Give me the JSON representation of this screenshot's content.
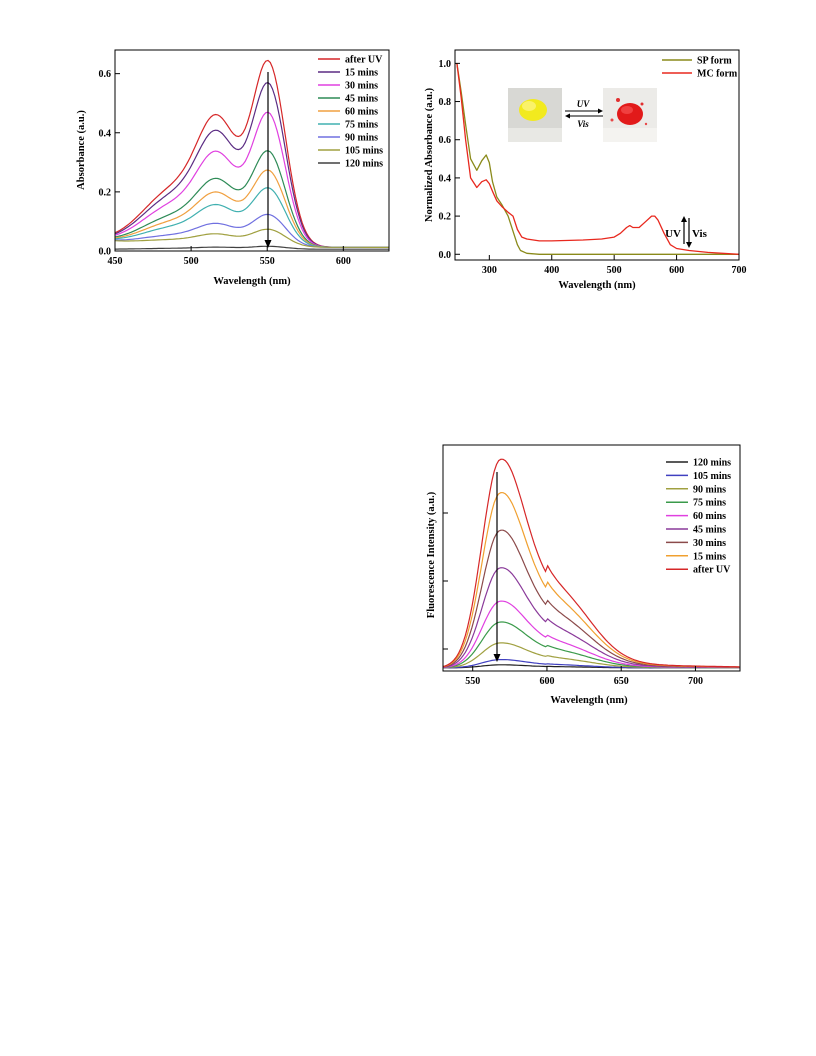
{
  "chart_data": [
    {
      "type": "line",
      "title": "",
      "xlabel": "Wavelength (nm)",
      "ylabel": "Absorbance (a.u.)",
      "xlim": [
        450,
        630
      ],
      "ylim": [
        0,
        0.68
      ],
      "xticks": [
        "450",
        "500",
        "550",
        "600"
      ],
      "yticks": [
        "0.0",
        "0.2",
        "0.4",
        "0.6"
      ],
      "legend_position": "top-right",
      "annotation": "arrow pointing down at 550 nm",
      "series": [
        {
          "name": "after UV",
          "color": "#d62728",
          "peak": 0.63
        },
        {
          "name": "15 mins",
          "color": "#5b2c83",
          "peak": 0.555
        },
        {
          "name": "30 mins",
          "color": "#e040e0",
          "peak": 0.455
        },
        {
          "name": "45 mins",
          "color": "#2e8b57",
          "peak": 0.325
        },
        {
          "name": "60 mins",
          "color": "#f0a040",
          "peak": 0.26
        },
        {
          "name": "75 mins",
          "color": "#40b0b0",
          "peak": 0.2
        },
        {
          "name": "90 mins",
          "color": "#7070e0",
          "peak": 0.11
        },
        {
          "name": "105 mins",
          "color": "#a0a040",
          "peak": 0.06
        },
        {
          "name": "120 mins",
          "color": "#404040",
          "peak": 0.01
        }
      ]
    },
    {
      "type": "line",
      "title": "",
      "xlabel": "Wavelength (nm)",
      "ylabel": "Normalized Absorbance (a.u.)",
      "xlim": [
        245,
        700
      ],
      "ylim": [
        -0.03,
        1.07
      ],
      "xticks": [
        "300",
        "400",
        "500",
        "600",
        "700"
      ],
      "yticks": [
        "0.0",
        "0.2",
        "0.4",
        "0.6",
        "0.8",
        "1.0"
      ],
      "legend_position": "top-right",
      "inset": {
        "forward_label": "UV",
        "reverse_label": "Vis"
      },
      "annotation": {
        "up_label": "UV",
        "down_label": "Vis"
      },
      "series": [
        {
          "name": "SP form",
          "color": "#8a8a1a",
          "x": [
            248,
            255,
            262,
            270,
            280,
            288,
            295,
            300,
            305,
            312,
            320,
            330,
            340,
            345,
            350,
            360,
            380,
            400,
            450,
            500,
            550,
            600,
            650,
            700
          ],
          "y": [
            1.0,
            0.85,
            0.68,
            0.5,
            0.44,
            0.49,
            0.52,
            0.48,
            0.38,
            0.3,
            0.26,
            0.2,
            0.1,
            0.05,
            0.02,
            0.005,
            0.0,
            0.0,
            0.0,
            0.0,
            0.0,
            0.0,
            0.0,
            0.0
          ]
        },
        {
          "name": "MC form",
          "color": "#e8281e",
          "x": [
            248,
            255,
            262,
            270,
            280,
            288,
            295,
            300,
            305,
            312,
            320,
            330,
            338,
            345,
            352,
            360,
            380,
            400,
            450,
            480,
            500,
            510,
            520,
            525,
            530,
            540,
            550,
            560,
            565,
            570,
            580,
            590,
            600,
            620,
            650,
            700
          ],
          "y": [
            1.0,
            0.82,
            0.6,
            0.4,
            0.35,
            0.38,
            0.39,
            0.37,
            0.33,
            0.28,
            0.25,
            0.22,
            0.2,
            0.13,
            0.09,
            0.08,
            0.07,
            0.07,
            0.075,
            0.08,
            0.09,
            0.11,
            0.14,
            0.15,
            0.14,
            0.14,
            0.17,
            0.2,
            0.2,
            0.18,
            0.11,
            0.05,
            0.03,
            0.02,
            0.01,
            0.0
          ]
        }
      ]
    },
    {
      "type": "line",
      "title": "",
      "xlabel": "Wavelength (nm)",
      "ylabel": "Fluorescence Intensity (a.u.)",
      "xlim": [
        530,
        730
      ],
      "ylim": [
        0,
        1.0
      ],
      "xticks": [
        "550",
        "600",
        "650",
        "700"
      ],
      "legend_position": "top-right",
      "annotation": "arrow pointing down at 568 nm",
      "series": [
        {
          "name": "120 mins",
          "color": "#222222",
          "peak": 0.015
        },
        {
          "name": "105 mins",
          "color": "#4040c0",
          "peak": 0.04
        },
        {
          "name": "90 mins",
          "color": "#a0a040",
          "peak": 0.12
        },
        {
          "name": "75 mins",
          "color": "#3a9a4a",
          "peak": 0.22
        },
        {
          "name": "60 mins",
          "color": "#e040e0",
          "peak": 0.32
        },
        {
          "name": "45 mins",
          "color": "#8a3a9a",
          "peak": 0.48
        },
        {
          "name": "30 mins",
          "color": "#8b4a4a",
          "peak": 0.66
        },
        {
          "name": "15 mins",
          "color": "#f0a030",
          "peak": 0.84
        },
        {
          "name": "after UV",
          "color": "#d62728",
          "peak": 1.0
        }
      ]
    }
  ]
}
